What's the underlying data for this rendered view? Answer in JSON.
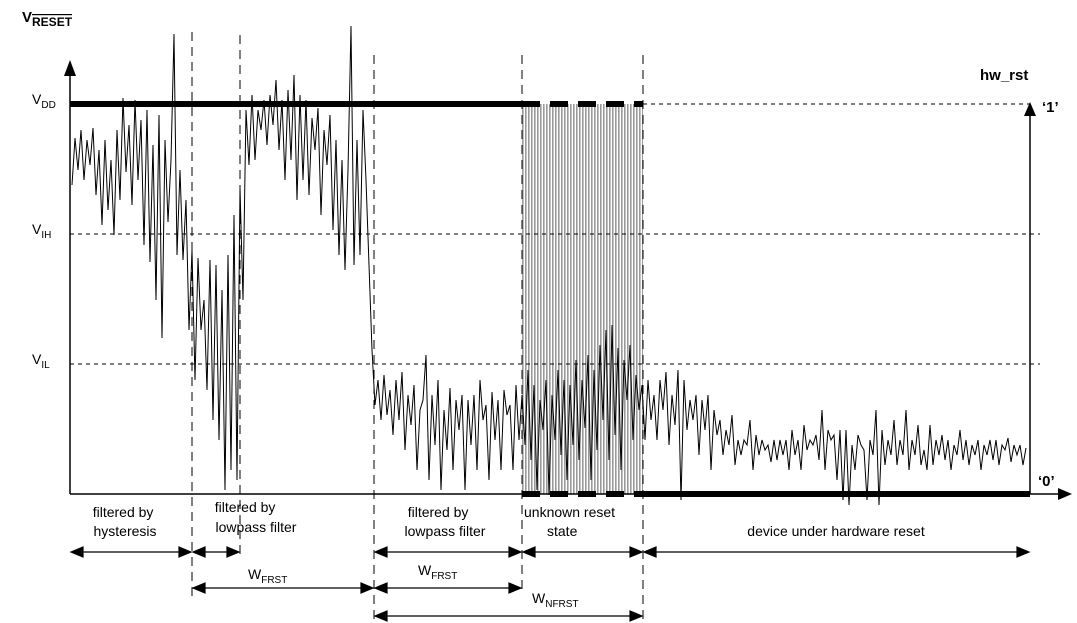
{
  "y_axis": {
    "title_base": "V",
    "title_sub": "RESET"
  },
  "levels": {
    "vdd": {
      "base": "V",
      "sub": "DD"
    },
    "vih": {
      "base": "V",
      "sub": "IH"
    },
    "vil": {
      "base": "V",
      "sub": "IL"
    }
  },
  "right_axis": {
    "title": "hw_rst",
    "high": "‘1’",
    "low": "‘0’"
  },
  "regions": [
    {
      "key": "hysteresis",
      "lines": [
        "filtered by",
        "hysteresis"
      ]
    },
    {
      "key": "lowpass1",
      "lines": [
        "filtered by",
        "lowpass filter"
      ]
    },
    {
      "key": "lowpass2",
      "lines": [
        "filtered by",
        "lowpass filter"
      ]
    },
    {
      "key": "unknown",
      "lines": [
        "unknown reset",
        "state"
      ]
    },
    {
      "key": "reset",
      "lines": [
        "device under hardware reset"
      ]
    }
  ],
  "widths": {
    "wfrst1": {
      "base": "W",
      "sub": "FRST"
    },
    "wfrst2": {
      "base": "W",
      "sub": "FRST"
    },
    "wnfrst": {
      "base": "W",
      "sub": "NFRST"
    }
  },
  "colors": {
    "ink": "#000000",
    "unknown_fill": "#b9b9b9"
  }
}
